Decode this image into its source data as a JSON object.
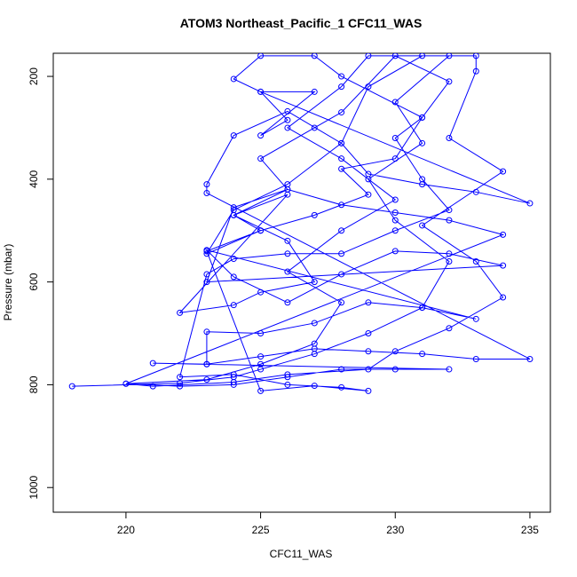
{
  "chart_data": {
    "type": "line",
    "title": "ATOM3 Northeast_Pacific_1 CFC11_WAS",
    "x_label": "CFC11_WAS",
    "y_label": "Pressure (mbar)",
    "x": [
      218,
      222,
      224,
      225,
      227,
      229,
      231,
      232,
      230,
      229,
      231,
      230,
      232,
      229,
      228,
      226,
      228,
      230,
      228,
      226,
      228,
      227,
      225,
      223,
      220,
      221,
      224,
      226,
      229,
      230,
      232,
      234,
      233,
      231,
      234,
      232,
      233,
      233,
      231,
      229,
      228,
      226,
      224,
      223,
      225,
      224,
      226,
      222,
      224,
      225,
      227,
      226,
      224,
      226,
      225,
      227,
      228,
      230,
      232,
      231,
      230,
      231,
      232,
      230,
      228,
      226,
      224,
      223,
      222,
      224,
      226,
      228,
      229,
      227,
      225,
      223,
      225,
      227,
      229,
      228,
      230,
      231,
      228,
      227,
      225,
      224,
      225,
      226,
      225,
      227,
      225,
      235,
      233,
      231,
      229,
      228,
      226,
      224,
      223,
      223,
      235,
      233,
      231,
      229,
      227,
      225,
      223,
      221,
      232,
      230,
      228,
      226,
      224,
      222,
      220,
      234,
      232,
      230,
      228,
      226,
      224,
      223,
      234,
      232,
      230,
      228,
      226,
      224,
      223,
      233,
      231,
      229,
      227,
      225,
      223,
      223
    ],
    "series": [
      {
        "name": "CFC11_WAS",
        "color": "#0000ff",
        "values": [
          803,
          797,
          785,
          770,
          740,
          700,
          650,
          560,
          480,
          400,
          330,
          250,
          160,
          160,
          220,
          300,
          360,
          440,
          500,
          580,
          640,
          720,
          760,
          790,
          798,
          803,
          795,
          780,
          770,
          735,
          690,
          630,
          560,
          490,
          385,
          320,
          190,
          160,
          160,
          220,
          330,
          410,
          460,
          545,
          500,
          470,
          430,
          660,
          645,
          620,
          600,
          520,
          470,
          420,
          360,
          300,
          270,
          160,
          210,
          280,
          320,
          400,
          460,
          500,
          545,
          545,
          555,
          585,
          785,
          780,
          800,
          805,
          812,
          802,
          812,
          540,
          500,
          470,
          430,
          380,
          360,
          280,
          200,
          160,
          160,
          205,
          230,
          285,
          315,
          230,
          230,
          447,
          425,
          410,
          390,
          330,
          268,
          315,
          410,
          427,
          750,
          750,
          740,
          735,
          730,
          745,
          760,
          758,
          770,
          770,
          770,
          785,
          800,
          803,
          798,
          508,
          480,
          465,
          450,
          420,
          455,
          600,
          568,
          545,
          540,
          585,
          640,
          590,
          538,
          672,
          650,
          640,
          680,
          700,
          697,
          760
        ]
      }
    ],
    "xlim": [
      217.3,
      235.76
    ],
    "ylim": [
      155,
      1048
    ],
    "y_inverted": true,
    "xticks": [
      220,
      225,
      230,
      235
    ],
    "yticks": [
      200,
      400,
      600,
      800,
      1000
    ],
    "marker": "circle"
  }
}
